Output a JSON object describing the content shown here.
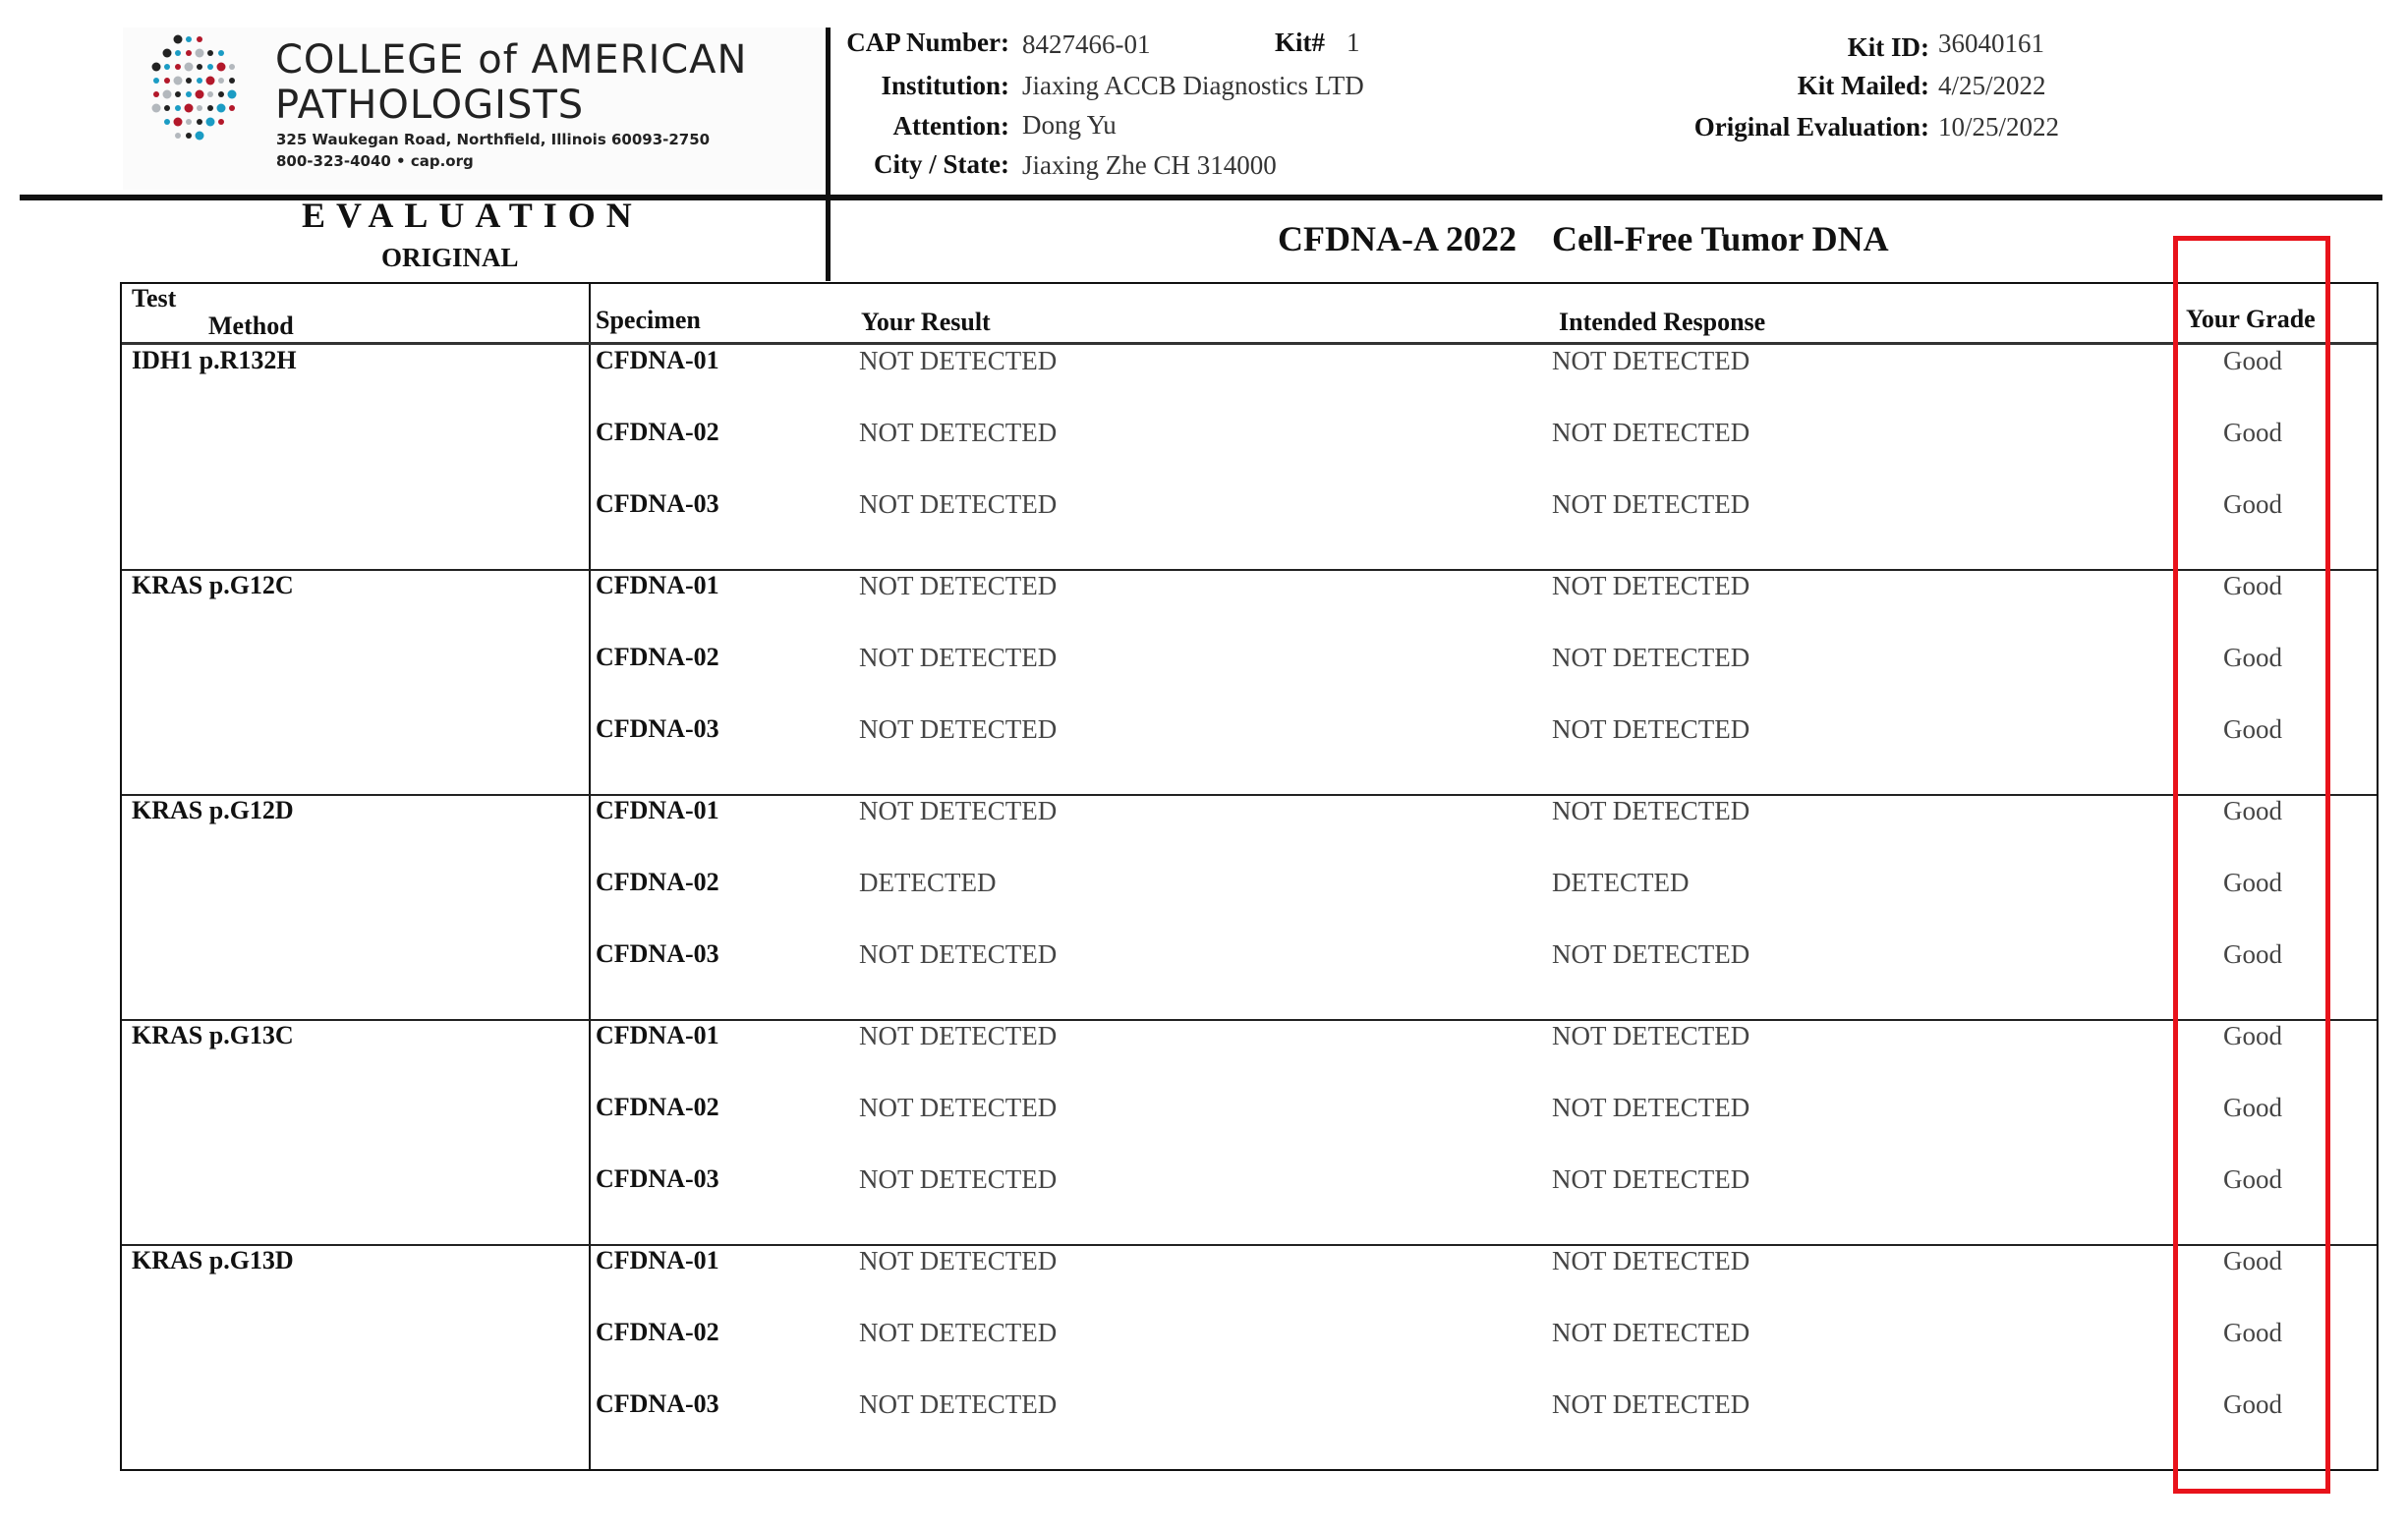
{
  "logo": {
    "line1": "COLLEGE of AMERICAN",
    "line2": "PATHOLOGISTS",
    "address": "325 Waukegan Road, Northfield, Illinois 60093-2750",
    "contact": "800-323-4040  •  cap.org"
  },
  "header": {
    "cap_number_label": "CAP Number:",
    "cap_number": "8427466-01",
    "kit_label": "Kit#",
    "kit": "1",
    "institution_label": "Institution:",
    "institution": "Jiaxing ACCB Diagnostics LTD",
    "attention_label": "Attention:",
    "attention": "Dong Yu",
    "city_label": "City / State:",
    "city": "Jiaxing Zhe CH 314000",
    "kit_id_label": "Kit ID:",
    "kit_id": "36040161",
    "kit_mailed_label": "Kit Mailed:",
    "kit_mailed": "4/25/2022",
    "orig_eval_label": "Original Evaluation:",
    "orig_eval": "10/25/2022"
  },
  "evaluation": {
    "title": "EVALUATION",
    "subtitle": "ORIGINAL"
  },
  "survey_title": "CFDNA-A 2022    Cell-Free Tumor DNA",
  "highlight_color": "#e8131b",
  "table": {
    "headers": {
      "test": "Test",
      "method": "Method",
      "specimen": "Specimen",
      "result": "Your Result",
      "intended": "Intended Response",
      "grade": "Your Grade"
    },
    "groups": [
      {
        "test": "IDH1 p.R132H",
        "rows": [
          {
            "specimen": "CFDNA-01",
            "result": "NOT DETECTED",
            "intended": "NOT DETECTED",
            "grade": "Good"
          },
          {
            "specimen": "CFDNA-02",
            "result": "NOT DETECTED",
            "intended": "NOT DETECTED",
            "grade": "Good"
          },
          {
            "specimen": "CFDNA-03",
            "result": "NOT DETECTED",
            "intended": "NOT DETECTED",
            "grade": "Good"
          }
        ]
      },
      {
        "test": "KRAS p.G12C",
        "rows": [
          {
            "specimen": "CFDNA-01",
            "result": "NOT DETECTED",
            "intended": "NOT DETECTED",
            "grade": "Good"
          },
          {
            "specimen": "CFDNA-02",
            "result": "NOT DETECTED",
            "intended": "NOT DETECTED",
            "grade": "Good"
          },
          {
            "specimen": "CFDNA-03",
            "result": "NOT DETECTED",
            "intended": "NOT DETECTED",
            "grade": "Good"
          }
        ]
      },
      {
        "test": "KRAS p.G12D",
        "rows": [
          {
            "specimen": "CFDNA-01",
            "result": "NOT DETECTED",
            "intended": "NOT DETECTED",
            "grade": "Good"
          },
          {
            "specimen": "CFDNA-02",
            "result": "DETECTED",
            "intended": "DETECTED",
            "grade": "Good"
          },
          {
            "specimen": "CFDNA-03",
            "result": "NOT DETECTED",
            "intended": "NOT DETECTED",
            "grade": "Good"
          }
        ]
      },
      {
        "test": "KRAS p.G13C",
        "rows": [
          {
            "specimen": "CFDNA-01",
            "result": "NOT DETECTED",
            "intended": "NOT DETECTED",
            "grade": "Good"
          },
          {
            "specimen": "CFDNA-02",
            "result": "NOT DETECTED",
            "intended": "NOT DETECTED",
            "grade": "Good"
          },
          {
            "specimen": "CFDNA-03",
            "result": "NOT DETECTED",
            "intended": "NOT DETECTED",
            "grade": "Good"
          }
        ]
      },
      {
        "test": "KRAS p.G13D",
        "rows": [
          {
            "specimen": "CFDNA-01",
            "result": "NOT DETECTED",
            "intended": "NOT DETECTED",
            "grade": "Good"
          },
          {
            "specimen": "CFDNA-02",
            "result": "NOT DETECTED",
            "intended": "NOT DETECTED",
            "grade": "Good"
          },
          {
            "specimen": "CFDNA-03",
            "result": "NOT DETECTED",
            "intended": "NOT DETECTED",
            "grade": "Good"
          }
        ]
      }
    ]
  }
}
